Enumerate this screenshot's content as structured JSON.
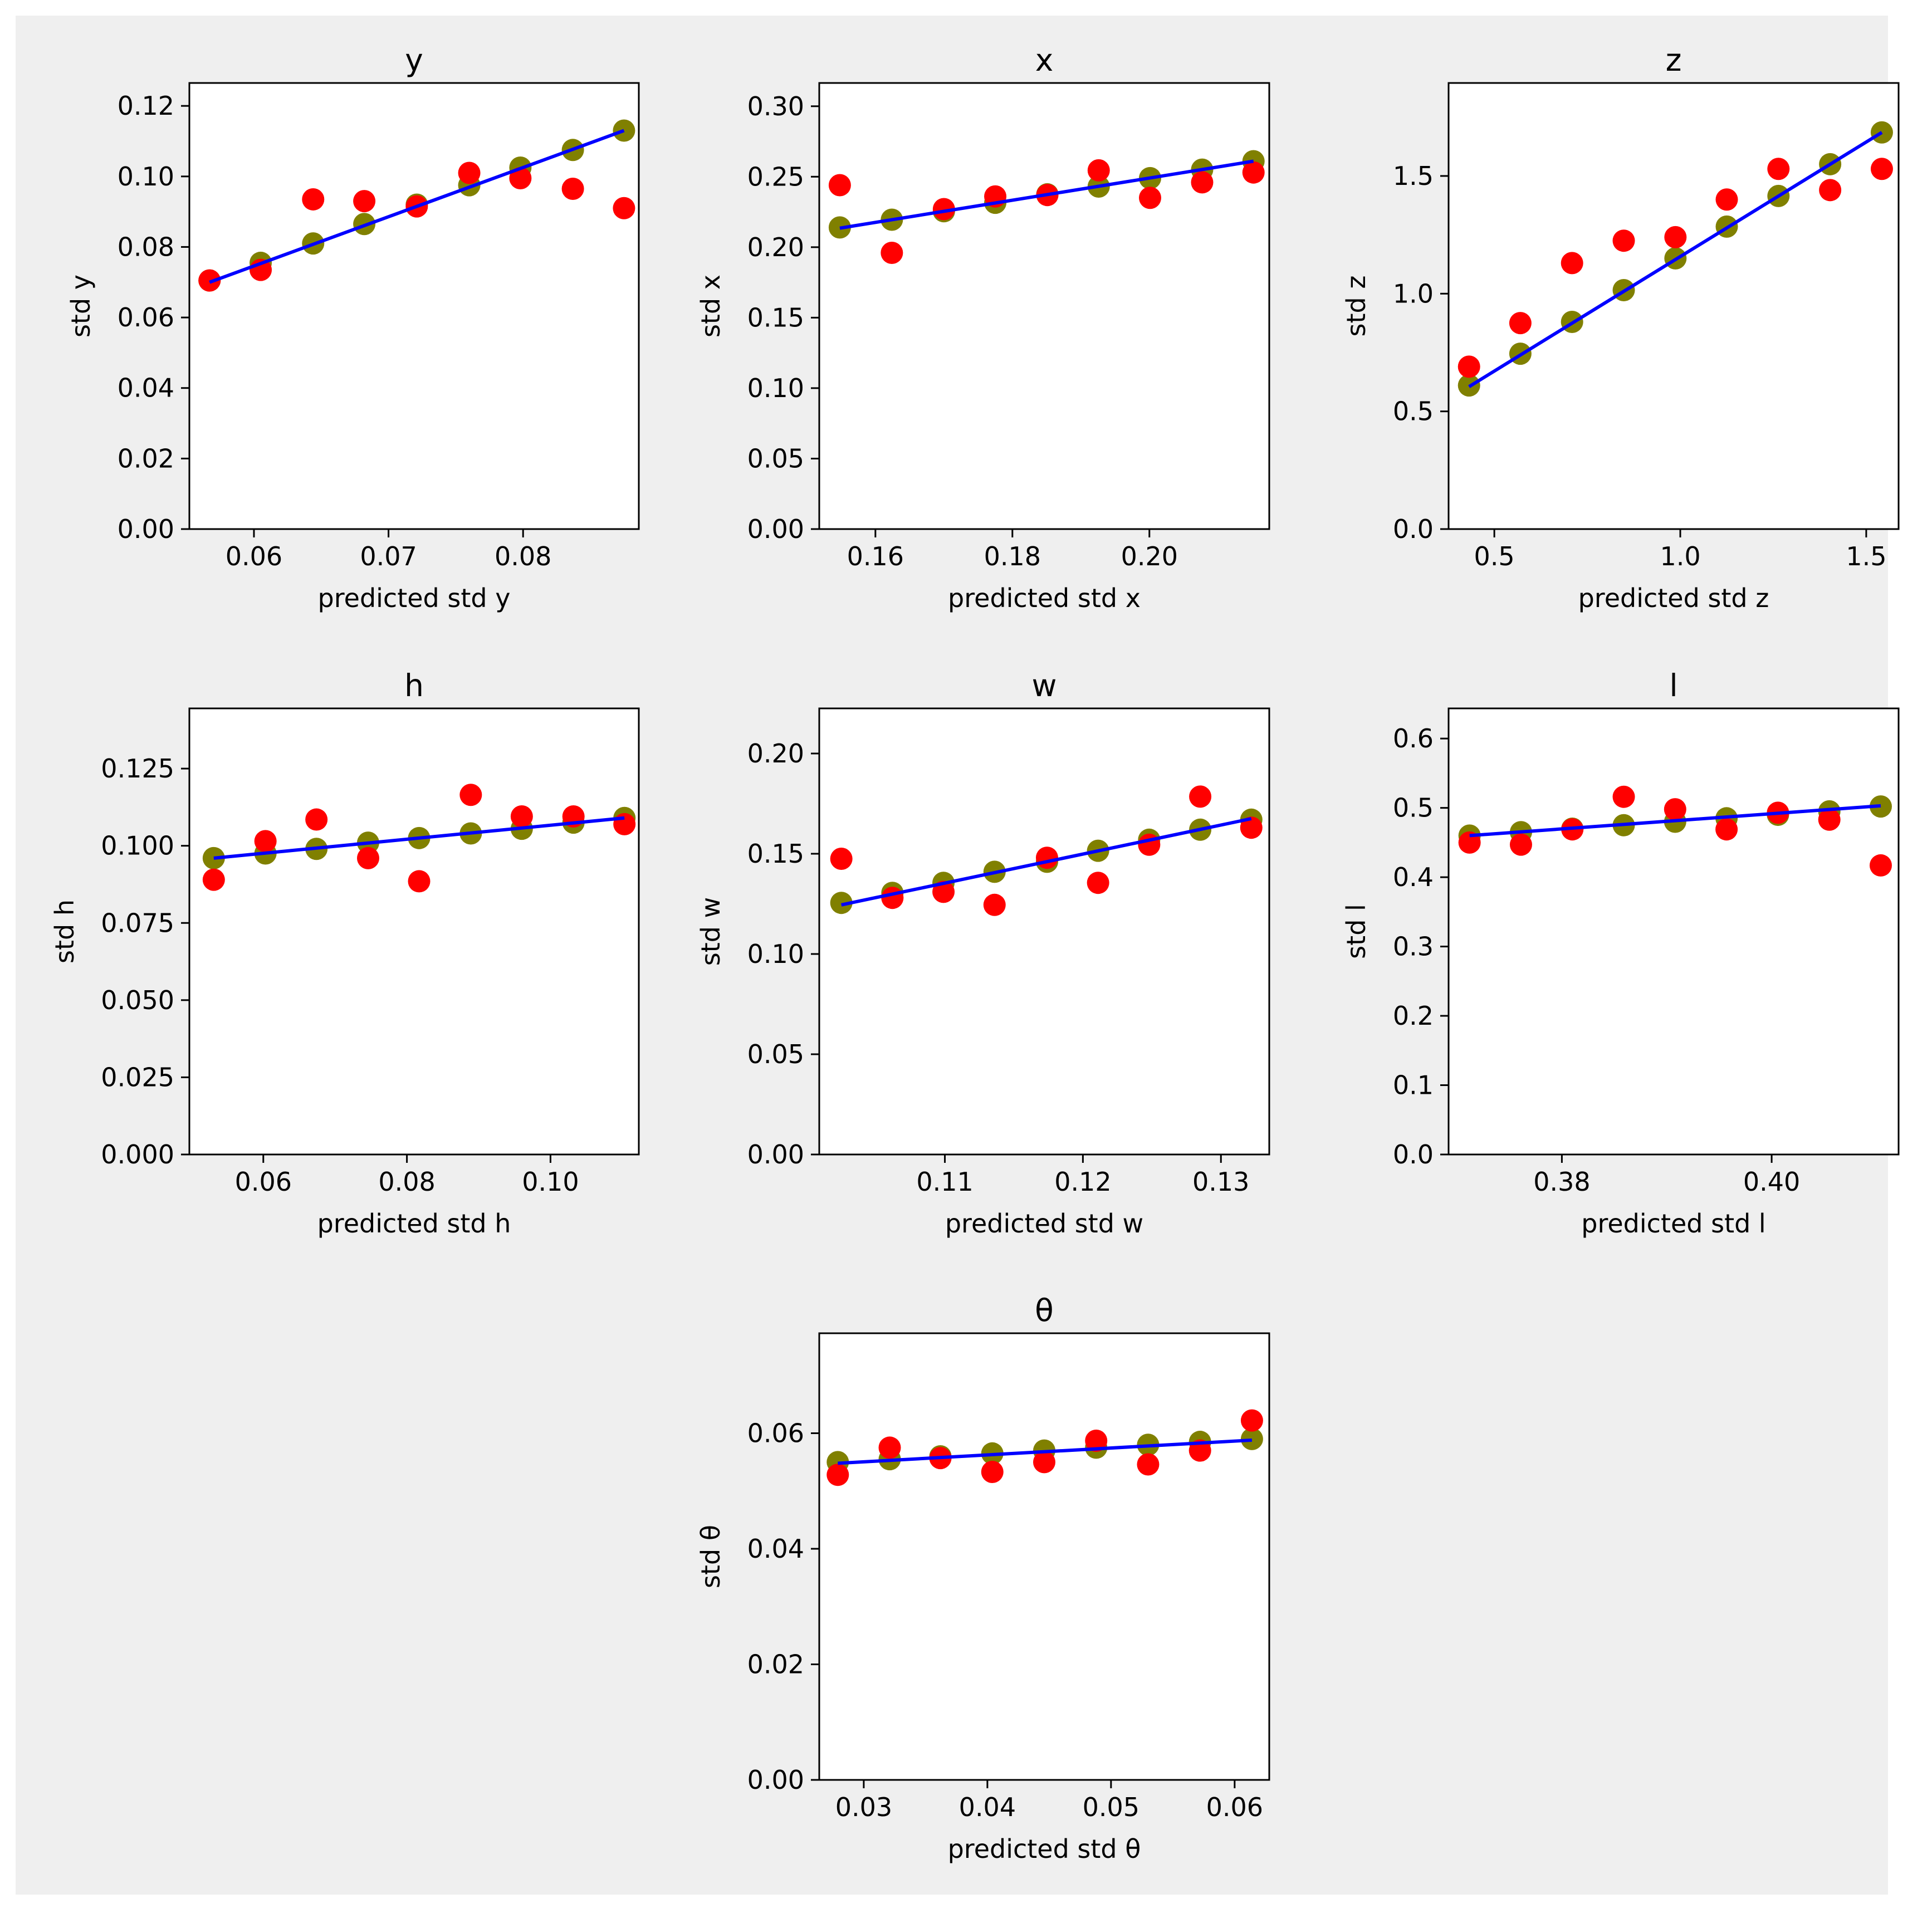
{
  "colors": {
    "figure_bg": "#efefef",
    "axes_bg": "#ffffff",
    "observed": "#ff0000",
    "expected": "#808000",
    "fit_line": "#0000ff"
  },
  "chart_data": [
    {
      "type": "scatter",
      "title": "y",
      "xlabel": "predicted std y",
      "ylabel": "std y",
      "xlim": [
        0.0552,
        0.0886
      ],
      "ylim": [
        0,
        0.1265
      ],
      "xticks": [
        0.06,
        0.07,
        0.08
      ],
      "xtick_labels": [
        "0.06",
        "0.07",
        "0.08"
      ],
      "yticks": [
        0,
        0.02,
        0.04,
        0.06,
        0.08,
        0.1,
        0.12
      ],
      "ytick_labels": [
        "0.00",
        "0.02",
        "0.04",
        "0.06",
        "0.08",
        "0.10",
        "0.12"
      ],
      "grid": false,
      "series": [
        {
          "role": "expected",
          "x": [
            0.0567,
            0.0605,
            0.0644,
            0.0682,
            0.0721,
            0.076,
            0.0798,
            0.0837,
            0.0875
          ],
          "y": [
            0.0705,
            0.0755,
            0.081,
            0.0865,
            0.092,
            0.0975,
            0.1025,
            0.1075,
            0.113
          ]
        },
        {
          "role": "observed",
          "x": [
            0.0567,
            0.0605,
            0.0644,
            0.0682,
            0.0721,
            0.076,
            0.0798,
            0.0837,
            0.0875
          ],
          "y": [
            0.0705,
            0.0735,
            0.0935,
            0.093,
            0.0915,
            0.101,
            0.0995,
            0.0965,
            0.091
          ]
        },
        {
          "role": "fit_line",
          "x": [
            0.0567,
            0.0875
          ],
          "y": [
            0.07,
            0.113
          ]
        }
      ]
    },
    {
      "type": "scatter",
      "title": "x",
      "xlabel": "predicted std x",
      "ylabel": "std x",
      "xlim": [
        0.1518,
        0.2175
      ],
      "ylim": [
        0,
        0.3165
      ],
      "xticks": [
        0.16,
        0.18,
        0.2
      ],
      "xtick_labels": [
        "0.16",
        "0.18",
        "0.20"
      ],
      "yticks": [
        0,
        0.05,
        0.1,
        0.15,
        0.2,
        0.25,
        0.3
      ],
      "ytick_labels": [
        "0.00",
        "0.05",
        "0.10",
        "0.15",
        "0.20",
        "0.25",
        "0.30"
      ],
      "grid": false,
      "series": [
        {
          "role": "expected",
          "x": [
            0.1548,
            0.1624,
            0.17,
            0.1775,
            0.1851,
            0.1926,
            0.2001,
            0.2077,
            0.2152
          ],
          "y": [
            0.214,
            0.2195,
            0.2255,
            0.2315,
            0.2375,
            0.243,
            0.249,
            0.255,
            0.261
          ]
        },
        {
          "role": "observed",
          "x": [
            0.1548,
            0.1624,
            0.17,
            0.1775,
            0.1851,
            0.1926,
            0.2001,
            0.2077,
            0.2152
          ],
          "y": [
            0.244,
            0.196,
            0.227,
            0.236,
            0.237,
            0.2545,
            0.235,
            0.246,
            0.253
          ]
        },
        {
          "role": "fit_line",
          "x": [
            0.1548,
            0.2152
          ],
          "y": [
            0.2135,
            0.261
          ]
        }
      ]
    },
    {
      "type": "scatter",
      "title": "z",
      "xlabel": "predicted std z",
      "ylabel": "std z",
      "xlim": [
        0.377,
        1.587
      ],
      "ylim": [
        0,
        1.895
      ],
      "xticks": [
        0.5,
        1.0,
        1.5
      ],
      "xtick_labels": [
        "0.5",
        "1.0",
        "1.5"
      ],
      "yticks": [
        0,
        0.5,
        1.0,
        1.5
      ],
      "ytick_labels": [
        "0.0",
        "0.5",
        "1.0",
        "1.5"
      ],
      "grid": false,
      "series": [
        {
          "role": "expected",
          "x": [
            0.432,
            0.57,
            0.709,
            0.848,
            0.987,
            1.125,
            1.264,
            1.403,
            1.542
          ],
          "y": [
            0.61,
            0.745,
            0.88,
            1.015,
            1.15,
            1.285,
            1.415,
            1.55,
            1.685
          ]
        },
        {
          "role": "observed",
          "x": [
            0.432,
            0.57,
            0.709,
            0.848,
            0.987,
            1.125,
            1.264,
            1.403,
            1.542
          ],
          "y": [
            0.69,
            0.875,
            1.13,
            1.225,
            1.24,
            1.4,
            1.53,
            1.44,
            1.53
          ]
        },
        {
          "role": "fit_line",
          "x": [
            0.432,
            1.542
          ],
          "y": [
            0.605,
            1.685
          ]
        }
      ]
    },
    {
      "type": "scatter",
      "title": "h",
      "xlabel": "predicted std h",
      "ylabel": "std h",
      "xlim": [
        0.0497,
        0.1123
      ],
      "ylim": [
        0,
        0.1445
      ],
      "xticks": [
        0.06,
        0.08,
        0.1
      ],
      "xtick_labels": [
        "0.06",
        "0.08",
        "0.10"
      ],
      "yticks": [
        0,
        0.025,
        0.05,
        0.075,
        0.1,
        0.125
      ],
      "ytick_labels": [
        "0.000",
        "0.025",
        "0.050",
        "0.075",
        "0.100",
        "0.125"
      ],
      "grid": false,
      "series": [
        {
          "role": "expected",
          "x": [
            0.0531,
            0.0603,
            0.0674,
            0.0746,
            0.0817,
            0.0889,
            0.096,
            0.1032,
            0.1103
          ],
          "y": [
            0.096,
            0.0975,
            0.099,
            0.101,
            0.1025,
            0.104,
            0.1055,
            0.1075,
            0.109
          ]
        },
        {
          "role": "observed",
          "x": [
            0.0531,
            0.0603,
            0.0674,
            0.0746,
            0.0817,
            0.0889,
            0.096,
            0.1032,
            0.1103
          ],
          "y": [
            0.089,
            0.1015,
            0.1085,
            0.096,
            0.0885,
            0.1165,
            0.1095,
            0.1095,
            0.107
          ]
        },
        {
          "role": "fit_line",
          "x": [
            0.0531,
            0.1103
          ],
          "y": [
            0.096,
            0.109
          ]
        }
      ]
    },
    {
      "type": "scatter",
      "title": "w",
      "xlabel": "predicted std w",
      "ylabel": "std w",
      "xlim": [
        0.1009,
        0.1335
      ],
      "ylim": [
        0,
        0.2225
      ],
      "xticks": [
        0.11,
        0.12,
        0.13
      ],
      "xtick_labels": [
        "0.11",
        "0.12",
        "0.13"
      ],
      "yticks": [
        0,
        0.05,
        0.1,
        0.15,
        0.2
      ],
      "ytick_labels": [
        "0.00",
        "0.05",
        "0.10",
        "0.15",
        "0.20"
      ],
      "grid": false,
      "series": [
        {
          "role": "expected",
          "x": [
            0.1025,
            0.1062,
            0.1099,
            0.1136,
            0.1174,
            0.1211,
            0.1248,
            0.1285,
            0.1322
          ],
          "y": [
            0.1255,
            0.1305,
            0.1355,
            0.141,
            0.146,
            0.1515,
            0.157,
            0.162,
            0.167
          ]
        },
        {
          "role": "observed",
          "x": [
            0.1025,
            0.1062,
            0.1099,
            0.1136,
            0.1174,
            0.1211,
            0.1248,
            0.1285,
            0.1322
          ],
          "y": [
            0.1475,
            0.128,
            0.131,
            0.1245,
            0.148,
            0.1355,
            0.1545,
            0.1785,
            0.163
          ]
        },
        {
          "role": "fit_line",
          "x": [
            0.1025,
            0.1322
          ],
          "y": [
            0.1245,
            0.1675
          ]
        }
      ]
    },
    {
      "type": "scatter",
      "title": "l",
      "xlabel": "predicted std l",
      "ylabel": "std l",
      "xlim": [
        0.3692,
        0.4121
      ],
      "ylim": [
        0,
        0.6435
      ],
      "xticks": [
        0.38,
        0.4
      ],
      "xtick_labels": [
        "0.38",
        "0.40"
      ],
      "yticks": [
        0,
        0.1,
        0.2,
        0.3,
        0.4,
        0.5,
        0.6
      ],
      "ytick_labels": [
        "0.0",
        "0.1",
        "0.2",
        "0.3",
        "0.4",
        "0.5",
        "0.6"
      ],
      "grid": false,
      "series": [
        {
          "role": "expected",
          "x": [
            0.3712,
            0.3761,
            0.381,
            0.3859,
            0.3908,
            0.3957,
            0.4006,
            0.4055,
            0.4104
          ],
          "y": [
            0.46,
            0.465,
            0.47,
            0.475,
            0.48,
            0.485,
            0.49,
            0.495,
            0.502
          ]
        },
        {
          "role": "observed",
          "x": [
            0.3712,
            0.3761,
            0.381,
            0.3859,
            0.3908,
            0.3957,
            0.4006,
            0.4055,
            0.4104
          ],
          "y": [
            0.45,
            0.447,
            0.469,
            0.516,
            0.498,
            0.469,
            0.493,
            0.483,
            0.417
          ]
        },
        {
          "role": "fit_line",
          "x": [
            0.3712,
            0.4104
          ],
          "y": [
            0.46,
            0.503
          ]
        }
      ]
    },
    {
      "type": "scatter",
      "title": "θ",
      "xlabel": "predicted std θ",
      "ylabel": "std θ",
      "xlim": [
        0.0264,
        0.0628
      ],
      "ylim": [
        0,
        0.0773
      ],
      "xticks": [
        0.03,
        0.04,
        0.05,
        0.06
      ],
      "xtick_labels": [
        "0.03",
        "0.04",
        "0.05",
        "0.06"
      ],
      "yticks": [
        0,
        0.02,
        0.04,
        0.06
      ],
      "ytick_labels": [
        "0.00",
        "0.02",
        "0.04",
        "0.06"
      ],
      "grid": false,
      "series": [
        {
          "role": "expected",
          "x": [
            0.0279,
            0.0321,
            0.0362,
            0.0404,
            0.0446,
            0.0488,
            0.053,
            0.0572,
            0.0614
          ],
          "y": [
            0.055,
            0.0555,
            0.056,
            0.0565,
            0.057,
            0.0575,
            0.058,
            0.0585,
            0.059
          ]
        },
        {
          "role": "observed",
          "x": [
            0.0279,
            0.0321,
            0.0362,
            0.0404,
            0.0446,
            0.0488,
            0.053,
            0.0572,
            0.0614
          ],
          "y": [
            0.0528,
            0.0575,
            0.0557,
            0.0533,
            0.055,
            0.0587,
            0.0546,
            0.057,
            0.0622
          ]
        },
        {
          "role": "fit_line",
          "x": [
            0.0279,
            0.0614
          ],
          "y": [
            0.0548,
            0.0588
          ]
        }
      ]
    }
  ]
}
